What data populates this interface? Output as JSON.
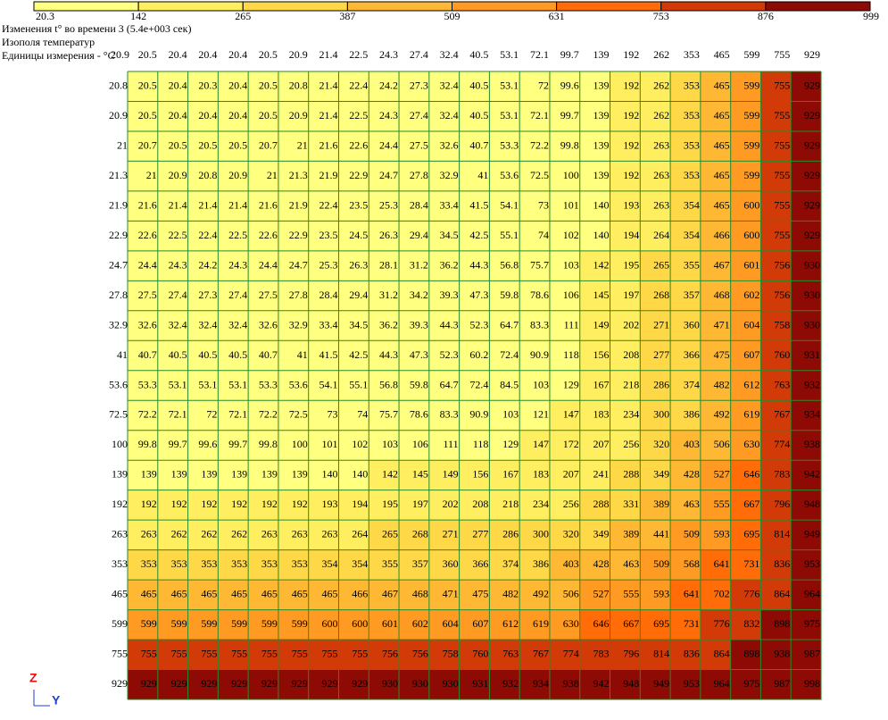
{
  "header": {
    "title": "Изменения t° во времени 3 (5.4e+003 сек)",
    "subtitle": "Изополя температур",
    "units": "Единицы измерения - °C"
  },
  "legend": {
    "levels": [
      20.3,
      142,
      265,
      387,
      509,
      631,
      753,
      876,
      999
    ],
    "colors": [
      "#ffff80",
      "#ffee60",
      "#ffd848",
      "#ffb834",
      "#ff9a22",
      "#ff6c08",
      "#d23a08",
      "#8e0a04"
    ]
  },
  "axes": {
    "z": "Z",
    "y": "Y"
  },
  "table": {
    "columns": [
      20.9,
      20.5,
      20.4,
      20.4,
      20.4,
      20.5,
      20.9,
      21.4,
      22.5,
      24.3,
      27.4,
      32.4,
      40.5,
      53.1,
      72.1,
      99.7,
      139,
      192,
      262,
      353,
      465,
      599,
      755,
      929
    ],
    "rows": [
      [
        20.8,
        20.5,
        20.4,
        20.3,
        20.4,
        20.5,
        20.8,
        21.4,
        22.4,
        24.2,
        27.3,
        32.4,
        40.5,
        53.1,
        72,
        99.6,
        139,
        192,
        262,
        353,
        465,
        599,
        755,
        929
      ],
      [
        20.9,
        20.5,
        20.4,
        20.4,
        20.4,
        20.5,
        20.9,
        21.4,
        22.5,
        24.3,
        27.4,
        32.4,
        40.5,
        53.1,
        72.1,
        99.7,
        139,
        192,
        262,
        353,
        465,
        599,
        755,
        929
      ],
      [
        21,
        20.7,
        20.5,
        20.5,
        20.5,
        20.7,
        21,
        21.6,
        22.6,
        24.4,
        27.5,
        32.6,
        40.7,
        53.3,
        72.2,
        99.8,
        139,
        192,
        263,
        353,
        465,
        599,
        755,
        929
      ],
      [
        21.3,
        21,
        20.9,
        20.8,
        20.9,
        21,
        21.3,
        21.9,
        22.9,
        24.7,
        27.8,
        32.9,
        41,
        53.6,
        72.5,
        100,
        139,
        192,
        263,
        353,
        465,
        599,
        755,
        929
      ],
      [
        21.9,
        21.6,
        21.4,
        21.4,
        21.4,
        21.6,
        21.9,
        22.4,
        23.5,
        25.3,
        28.4,
        33.4,
        41.5,
        54.1,
        73,
        101,
        140,
        193,
        263,
        354,
        465,
        600,
        755,
        929
      ],
      [
        22.9,
        22.6,
        22.5,
        22.4,
        22.5,
        22.6,
        22.9,
        23.5,
        24.5,
        26.3,
        29.4,
        34.5,
        42.5,
        55.1,
        74,
        102,
        140,
        194,
        264,
        354,
        466,
        600,
        755,
        929
      ],
      [
        24.7,
        24.4,
        24.3,
        24.2,
        24.3,
        24.4,
        24.7,
        25.3,
        26.3,
        28.1,
        31.2,
        36.2,
        44.3,
        56.8,
        75.7,
        103,
        142,
        195,
        265,
        355,
        467,
        601,
        756,
        930
      ],
      [
        27.8,
        27.5,
        27.4,
        27.3,
        27.4,
        27.5,
        27.8,
        28.4,
        29.4,
        31.2,
        34.2,
        39.3,
        47.3,
        59.8,
        78.6,
        106,
        145,
        197,
        268,
        357,
        468,
        602,
        756,
        930
      ],
      [
        32.9,
        32.6,
        32.4,
        32.4,
        32.4,
        32.6,
        32.9,
        33.4,
        34.5,
        36.2,
        39.3,
        44.3,
        52.3,
        64.7,
        83.3,
        111,
        149,
        202,
        271,
        360,
        471,
        604,
        758,
        930
      ],
      [
        41,
        40.7,
        40.5,
        40.5,
        40.5,
        40.7,
        41,
        41.5,
        42.5,
        44.3,
        47.3,
        52.3,
        60.2,
        72.4,
        90.9,
        118,
        156,
        208,
        277,
        366,
        475,
        607,
        760,
        931
      ],
      [
        53.6,
        53.3,
        53.1,
        53.1,
        53.1,
        53.3,
        53.6,
        54.1,
        55.1,
        56.8,
        59.8,
        64.7,
        72.4,
        84.5,
        103,
        129,
        167,
        218,
        286,
        374,
        482,
        612,
        763,
        932
      ],
      [
        72.5,
        72.2,
        72.1,
        72,
        72.1,
        72.2,
        72.5,
        73,
        74,
        75.7,
        78.6,
        83.3,
        90.9,
        103,
        121,
        147,
        183,
        234,
        300,
        386,
        492,
        619,
        767,
        934
      ],
      [
        100,
        99.8,
        99.7,
        99.6,
        99.7,
        99.8,
        100,
        101,
        102,
        103,
        106,
        111,
        118,
        129,
        147,
        172,
        207,
        256,
        320,
        403,
        506,
        630,
        774,
        938
      ],
      [
        139,
        139,
        139,
        139,
        139,
        139,
        139,
        140,
        140,
        142,
        145,
        149,
        156,
        167,
        183,
        207,
        241,
        288,
        349,
        428,
        527,
        646,
        783,
        942
      ],
      [
        192,
        192,
        192,
        192,
        192,
        192,
        192,
        193,
        194,
        195,
        197,
        202,
        208,
        218,
        234,
        256,
        288,
        331,
        389,
        463,
        555,
        667,
        796,
        948
      ],
      [
        263,
        263,
        262,
        262,
        262,
        263,
        263,
        263,
        264,
        265,
        268,
        271,
        277,
        286,
        300,
        320,
        349,
        389,
        441,
        509,
        593,
        695,
        814,
        949
      ],
      [
        353,
        353,
        353,
        353,
        353,
        353,
        353,
        354,
        354,
        355,
        357,
        360,
        366,
        374,
        386,
        403,
        428,
        463,
        509,
        568,
        641,
        731,
        836,
        953
      ],
      [
        465,
        465,
        465,
        465,
        465,
        465,
        465,
        465,
        466,
        467,
        468,
        471,
        475,
        482,
        492,
        506,
        527,
        555,
        593,
        641,
        702,
        776,
        864,
        964
      ],
      [
        599,
        599,
        599,
        599,
        599,
        599,
        599,
        600,
        600,
        601,
        602,
        604,
        607,
        612,
        619,
        630,
        646,
        667,
        695,
        731,
        776,
        832,
        898,
        975
      ],
      [
        755,
        755,
        755,
        755,
        755,
        755,
        755,
        755,
        755,
        756,
        756,
        758,
        760,
        763,
        767,
        774,
        783,
        796,
        814,
        836,
        864,
        898,
        938,
        987
      ],
      [
        929,
        929,
        929,
        929,
        929,
        929,
        929,
        929,
        929,
        930,
        930,
        930,
        931,
        932,
        934,
        938,
        942,
        948,
        949,
        953,
        964,
        975,
        987,
        998
      ]
    ]
  }
}
